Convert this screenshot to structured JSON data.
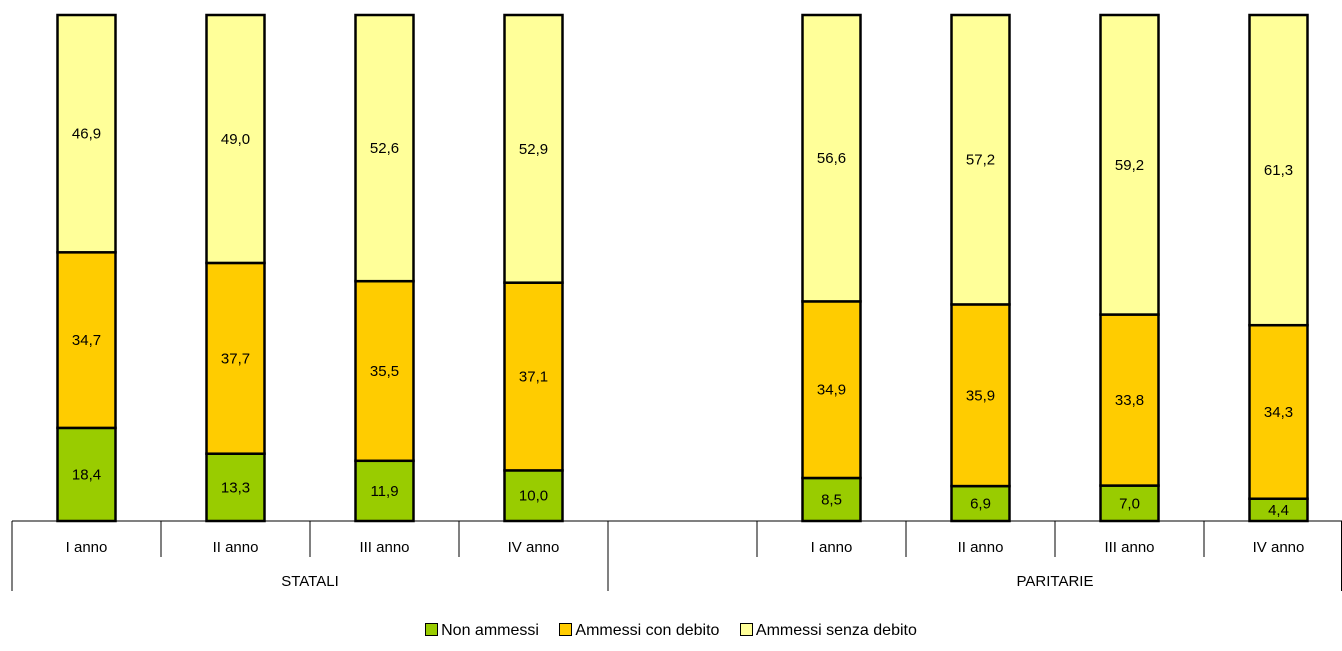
{
  "chart_data": {
    "type": "stacked-bar",
    "ylim": [
      0,
      100
    ],
    "groups": [
      {
        "label": "STATALI",
        "categories": [
          "I anno",
          "II anno",
          "III anno",
          "IV anno"
        ]
      },
      {
        "label": "PARITARIE",
        "categories": [
          "I anno",
          "II anno",
          "III anno",
          "IV anno"
        ]
      }
    ],
    "series": [
      {
        "name": "Non ammessi",
        "color": "#99cc00",
        "values": [
          18.4,
          13.3,
          11.9,
          10.0,
          8.5,
          6.9,
          7.0,
          4.4
        ],
        "labels": [
          "18,4",
          "13,3",
          "11,9",
          "10,0",
          "8,5",
          "6,9",
          "7,0",
          "4,4"
        ]
      },
      {
        "name": "Ammessi con debito",
        "color": "#ffcc00",
        "values": [
          34.7,
          37.7,
          35.5,
          37.1,
          34.9,
          35.9,
          33.8,
          34.3
        ],
        "labels": [
          "34,7",
          "37,7",
          "35,5",
          "37,1",
          "34,9",
          "35,9",
          "33,8",
          "34,3"
        ]
      },
      {
        "name": "Ammessi senza debito",
        "color": "#ffff99",
        "values": [
          46.9,
          49.0,
          52.6,
          52.9,
          56.6,
          57.2,
          59.2,
          61.3
        ],
        "labels": [
          "46,9",
          "49,0",
          "52,6",
          "52,9",
          "56,6",
          "57,2",
          "59,2",
          "61,3"
        ]
      }
    ],
    "legend_position": "bottom",
    "grid": false
  }
}
